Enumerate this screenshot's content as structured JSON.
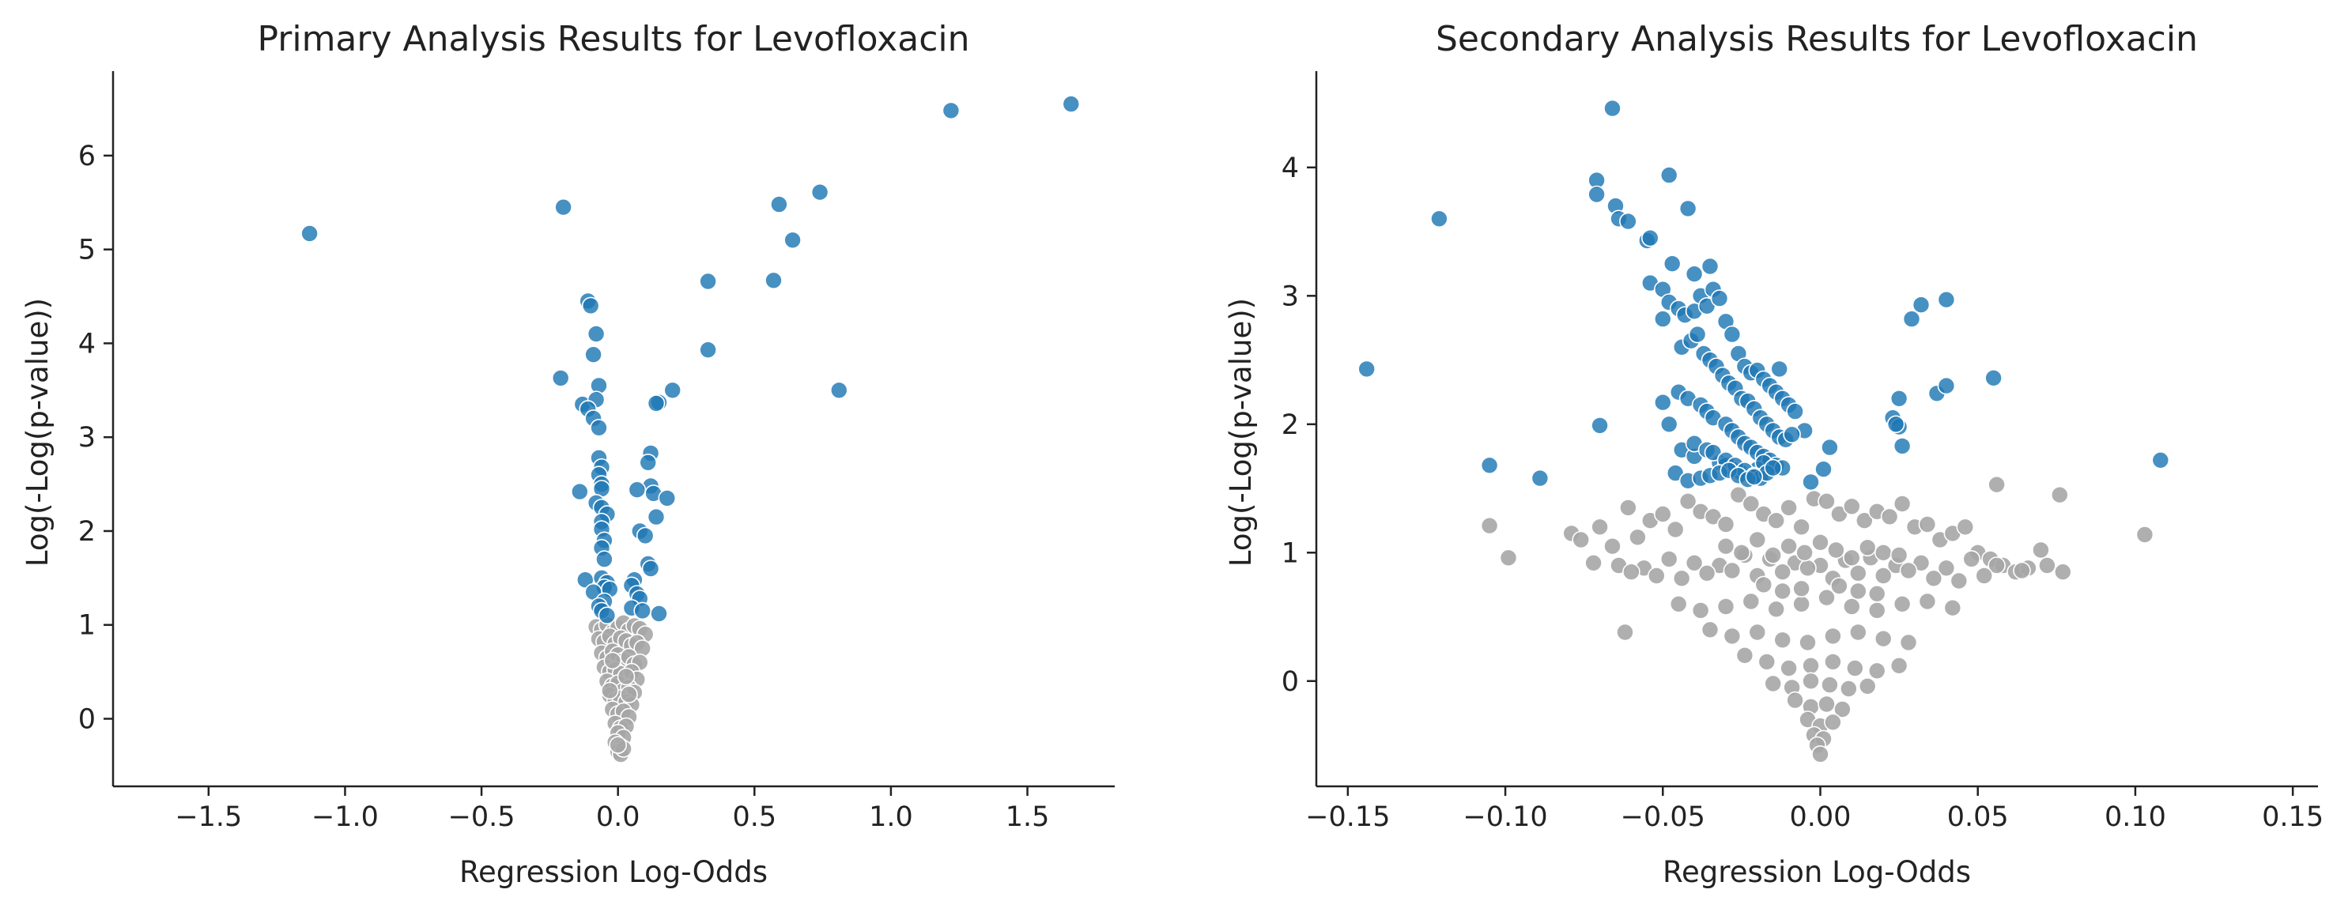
{
  "colors": {
    "significant": "#1f77b4",
    "not_significant": "#a6a6a6",
    "axis": "#222222",
    "background": "#ffffff"
  },
  "chart_data": [
    {
      "type": "scatter",
      "title": "Primary Analysis Results for Levofloxacin",
      "xlabel": "Regression Log-Odds",
      "ylabel": "Log(-Log(p-value))",
      "xlim": [
        -1.85,
        1.82
      ],
      "ylim": [
        -0.72,
        6.9
      ],
      "xticks": [
        -1.5,
        -1.0,
        -0.5,
        0.0,
        0.5,
        1.0,
        1.5
      ],
      "xtick_labels": [
        "−1.5",
        "−1.0",
        "−0.5",
        "0.0",
        "0.5",
        "1.0",
        "1.5"
      ],
      "yticks": [
        0,
        1,
        2,
        3,
        4,
        5,
        6
      ],
      "ytick_labels": [
        "0",
        "1",
        "2",
        "3",
        "4",
        "5",
        "6"
      ],
      "grid": false,
      "series": [
        {
          "color_key": "significant",
          "x": [
            -1.13,
            -0.2,
            1.22,
            1.66,
            0.74,
            0.59,
            0.64,
            0.57,
            0.33,
            0.33,
            0.81,
            -0.11,
            -0.1,
            -0.08,
            -0.09,
            -0.21,
            -0.13,
            -0.07,
            -0.08,
            -0.11,
            -0.09,
            -0.07,
            0.2,
            0.15,
            0.14,
            0.12,
            0.11,
            -0.14,
            -0.07,
            -0.06,
            -0.07,
            -0.06,
            -0.06,
            0.12,
            0.07,
            0.13,
            0.14,
            0.18,
            -0.08,
            -0.06,
            -0.04,
            -0.06,
            0.08,
            0.1,
            -0.06,
            -0.05,
            -0.06,
            -0.05,
            0.11,
            0.12,
            -0.12,
            -0.06,
            -0.04,
            -0.05,
            0.06,
            0.05,
            -0.03,
            0.07,
            -0.09,
            0.08,
            -0.05,
            -0.07,
            -0.06,
            0.05,
            0.09,
            0.15,
            -0.04
          ],
          "y": [
            5.17,
            5.45,
            6.48,
            6.55,
            5.61,
            5.48,
            5.1,
            4.67,
            4.66,
            3.93,
            3.5,
            4.45,
            4.4,
            4.1,
            3.88,
            3.63,
            3.35,
            3.55,
            3.4,
            3.3,
            3.2,
            3.1,
            3.5,
            3.37,
            3.36,
            2.83,
            2.73,
            2.42,
            2.78,
            2.68,
            2.6,
            2.5,
            2.45,
            2.48,
            2.44,
            2.4,
            2.15,
            2.35,
            2.3,
            2.25,
            2.18,
            2.1,
            2.0,
            1.95,
            2.02,
            1.9,
            1.82,
            1.7,
            1.65,
            1.6,
            1.48,
            1.5,
            1.45,
            1.4,
            1.48,
            1.42,
            1.38,
            1.33,
            1.35,
            1.28,
            1.25,
            1.2,
            1.15,
            1.18,
            1.15,
            1.12,
            1.1
          ]
        },
        {
          "color_key": "not_significant",
          "x": [
            -0.08,
            -0.06,
            -0.04,
            -0.02,
            0.0,
            0.02,
            0.04,
            0.06,
            0.08,
            0.1,
            -0.07,
            -0.05,
            -0.03,
            -0.01,
            0.01,
            0.03,
            0.05,
            0.07,
            0.09,
            -0.06,
            -0.04,
            -0.02,
            0.0,
            0.02,
            0.04,
            0.06,
            0.08,
            -0.05,
            -0.03,
            -0.01,
            0.01,
            0.03,
            0.05,
            0.07,
            -0.04,
            -0.02,
            0.0,
            0.02,
            0.04,
            0.06,
            -0.03,
            -0.01,
            0.01,
            0.03,
            0.05,
            -0.02,
            0.0,
            0.02,
            0.04,
            -0.01,
            0.01,
            0.03,
            0.0,
            0.02,
            -0.01,
            0.01,
            0.0,
            0.01,
            0.02,
            0.0,
            -0.02,
            0.03,
            -0.03,
            0.04
          ],
          "y": [
            0.98,
            0.95,
            1.0,
            0.92,
            0.97,
            1.02,
            0.94,
            0.99,
            0.96,
            0.9,
            0.85,
            0.82,
            0.88,
            0.8,
            0.86,
            0.83,
            0.78,
            0.81,
            0.75,
            0.7,
            0.65,
            0.72,
            0.68,
            0.62,
            0.66,
            0.58,
            0.6,
            0.55,
            0.5,
            0.52,
            0.48,
            0.45,
            0.5,
            0.42,
            0.4,
            0.35,
            0.38,
            0.3,
            0.33,
            0.28,
            0.25,
            0.2,
            0.22,
            0.18,
            0.15,
            0.1,
            0.05,
            0.08,
            0.02,
            -0.05,
            -0.1,
            -0.08,
            -0.15,
            -0.2,
            -0.25,
            -0.3,
            -0.35,
            -0.38,
            -0.32,
            -0.28,
            0.62,
            0.45,
            0.3,
            0.26
          ]
        }
      ]
    },
    {
      "type": "scatter",
      "title": "Secondary Analysis Results for Levofloxacin",
      "xlabel": "Regression Log-Odds",
      "ylabel": "Log(-Log(p-value))",
      "xlim": [
        -0.16,
        0.158
      ],
      "ylim": [
        -0.82,
        4.75
      ],
      "xticks": [
        -0.15,
        -0.1,
        -0.05,
        0.0,
        0.05,
        0.1,
        0.15
      ],
      "xtick_labels": [
        "−0.15",
        "−0.10",
        "−0.05",
        "0.00",
        "0.05",
        "0.10",
        "0.15"
      ],
      "yticks": [
        0,
        1,
        2,
        3,
        4
      ],
      "ytick_labels": [
        "0",
        "1",
        "2",
        "3",
        "4"
      ],
      "grid": false,
      "series": [
        {
          "color_key": "significant",
          "x": [
            -0.144,
            -0.121,
            -0.105,
            -0.089,
            -0.07,
            -0.071,
            -0.071,
            -0.065,
            -0.066,
            -0.064,
            -0.061,
            -0.055,
            -0.054,
            -0.048,
            -0.047,
            -0.042,
            -0.04,
            -0.035,
            -0.054,
            -0.05,
            -0.048,
            -0.045,
            -0.043,
            -0.04,
            -0.038,
            -0.036,
            -0.034,
            -0.032,
            -0.03,
            -0.028,
            -0.026,
            -0.024,
            -0.022,
            -0.02,
            -0.018,
            -0.016,
            -0.014,
            -0.012,
            -0.01,
            -0.008,
            -0.005,
            -0.044,
            -0.041,
            -0.039,
            -0.037,
            -0.035,
            -0.033,
            -0.031,
            -0.029,
            -0.027,
            -0.025,
            -0.023,
            -0.021,
            -0.019,
            -0.017,
            -0.015,
            -0.013,
            -0.011,
            -0.009,
            -0.045,
            -0.042,
            -0.038,
            -0.036,
            -0.034,
            -0.03,
            -0.028,
            -0.026,
            -0.024,
            -0.022,
            -0.02,
            -0.018,
            -0.016,
            -0.05,
            -0.048,
            -0.044,
            -0.04,
            -0.032,
            -0.03,
            -0.028,
            -0.025,
            -0.022,
            -0.02,
            -0.018,
            -0.014,
            -0.012,
            -0.04,
            -0.036,
            -0.034,
            -0.03,
            -0.027,
            -0.024,
            -0.021,
            -0.019,
            -0.017,
            -0.015,
            -0.05,
            -0.046,
            -0.042,
            -0.038,
            -0.035,
            -0.032,
            -0.029,
            -0.026,
            -0.023,
            -0.021,
            -0.013,
            -0.003,
            0.003,
            0.001,
            0.023,
            0.025,
            0.025,
            0.026,
            0.024,
            0.029,
            0.032,
            0.037,
            0.04,
            0.04,
            0.055,
            0.108
          ],
          "y": [
            2.43,
            3.6,
            1.68,
            1.58,
            1.99,
            3.9,
            3.79,
            3.7,
            4.46,
            3.6,
            3.58,
            3.43,
            3.45,
            3.94,
            3.25,
            3.68,
            3.17,
            3.23,
            3.1,
            3.05,
            2.95,
            2.9,
            2.85,
            2.88,
            3.0,
            2.92,
            3.05,
            2.98,
            2.8,
            2.7,
            2.55,
            2.45,
            2.4,
            2.42,
            2.35,
            2.3,
            2.25,
            2.2,
            2.15,
            2.1,
            1.95,
            2.6,
            2.65,
            2.7,
            2.55,
            2.5,
            2.45,
            2.38,
            2.32,
            2.28,
            2.2,
            2.18,
            2.12,
            2.05,
            2.0,
            1.95,
            1.9,
            1.88,
            1.92,
            2.25,
            2.2,
            2.15,
            2.1,
            2.05,
            2.0,
            1.95,
            1.9,
            1.85,
            1.82,
            1.78,
            1.75,
            1.72,
            2.82,
            2.0,
            1.8,
            1.75,
            1.7,
            1.68,
            1.65,
            1.62,
            1.6,
            1.65,
            1.7,
            1.68,
            1.66,
            1.85,
            1.8,
            1.78,
            1.72,
            1.68,
            1.64,
            1.6,
            1.58,
            1.62,
            1.66,
            2.17,
            1.62,
            1.56,
            1.58,
            1.6,
            1.62,
            1.64,
            1.6,
            1.57,
            1.59,
            2.43,
            1.55,
            1.82,
            1.65,
            2.05,
            1.98,
            2.2,
            1.83,
            2.0,
            2.82,
            2.93,
            2.24,
            2.3,
            2.97,
            2.36,
            1.72
          ]
        },
        {
          "color_key": "not_significant",
          "x": [
            -0.105,
            -0.099,
            -0.079,
            -0.076,
            -0.07,
            -0.066,
            -0.061,
            -0.058,
            -0.054,
            -0.05,
            -0.046,
            -0.042,
            -0.038,
            -0.034,
            -0.03,
            -0.026,
            -0.022,
            -0.018,
            -0.014,
            -0.01,
            -0.006,
            -0.002,
            0.002,
            0.006,
            0.01,
            0.014,
            0.018,
            0.022,
            0.026,
            0.03,
            0.034,
            0.038,
            0.042,
            0.046,
            0.05,
            0.054,
            0.058,
            0.062,
            0.066,
            0.07,
            0.077,
            0.103,
            -0.072,
            -0.064,
            -0.056,
            -0.048,
            -0.04,
            -0.032,
            -0.024,
            -0.016,
            -0.008,
            0.0,
            0.008,
            0.016,
            0.024,
            0.032,
            0.04,
            0.048,
            0.056,
            0.064,
            0.072,
            -0.06,
            -0.052,
            -0.044,
            -0.036,
            -0.028,
            -0.02,
            -0.012,
            -0.004,
            0.004,
            0.012,
            0.02,
            0.028,
            0.036,
            0.044,
            0.052,
            -0.045,
            -0.038,
            -0.03,
            -0.022,
            -0.014,
            -0.006,
            0.002,
            0.01,
            0.018,
            0.026,
            0.034,
            0.042,
            -0.035,
            -0.028,
            -0.02,
            -0.012,
            -0.004,
            0.004,
            0.012,
            0.02,
            0.028,
            -0.024,
            -0.017,
            -0.01,
            -0.003,
            0.004,
            0.011,
            0.018,
            0.025,
            -0.015,
            -0.009,
            -0.003,
            0.003,
            0.009,
            0.015,
            -0.008,
            -0.003,
            0.002,
            0.007,
            -0.004,
            0.0,
            0.004,
            -0.002,
            0.001,
            -0.001,
            0.0,
            -0.03,
            -0.025,
            -0.02,
            -0.015,
            -0.01,
            -0.005,
            0.0,
            0.005,
            0.01,
            0.015,
            0.02,
            0.025,
            -0.018,
            -0.012,
            -0.006,
            0.006,
            0.012,
            0.018,
            0.056,
            0.076,
            -0.062
          ],
          "y": [
            1.21,
            0.96,
            1.15,
            1.1,
            1.2,
            1.05,
            1.35,
            1.12,
            1.25,
            1.3,
            1.18,
            1.4,
            1.32,
            1.28,
            1.22,
            1.45,
            1.38,
            1.3,
            1.25,
            1.35,
            1.2,
            1.42,
            1.4,
            1.3,
            1.36,
            1.25,
            1.32,
            1.28,
            1.38,
            1.2,
            1.22,
            1.1,
            1.15,
            1.2,
            1.0,
            0.95,
            0.9,
            0.85,
            0.88,
            1.02,
            0.85,
            1.14,
            0.92,
            0.9,
            0.88,
            0.95,
            0.92,
            0.9,
            0.98,
            0.95,
            0.92,
            0.9,
            0.94,
            0.96,
            0.9,
            0.92,
            0.88,
            0.95,
            0.9,
            0.86,
            0.9,
            0.85,
            0.82,
            0.8,
            0.84,
            0.86,
            0.82,
            0.85,
            0.88,
            0.8,
            0.84,
            0.82,
            0.86,
            0.8,
            0.78,
            0.82,
            0.6,
            0.55,
            0.58,
            0.62,
            0.56,
            0.6,
            0.65,
            0.58,
            0.55,
            0.6,
            0.62,
            0.57,
            0.4,
            0.35,
            0.38,
            0.32,
            0.3,
            0.35,
            0.38,
            0.33,
            0.3,
            0.2,
            0.15,
            0.1,
            0.12,
            0.15,
            0.1,
            0.08,
            0.12,
            -0.02,
            -0.05,
            0.0,
            -0.03,
            -0.06,
            -0.04,
            -0.15,
            -0.2,
            -0.18,
            -0.22,
            -0.3,
            -0.35,
            -0.32,
            -0.42,
            -0.45,
            -0.5,
            -0.57,
            1.05,
            1.0,
            1.1,
            0.98,
            1.05,
            1.0,
            1.08,
            1.02,
            0.96,
            1.04,
            1.0,
            0.98,
            0.75,
            0.7,
            0.72,
            0.74,
            0.7,
            0.68,
            1.53,
            1.45,
            0.38
          ]
        }
      ]
    }
  ]
}
